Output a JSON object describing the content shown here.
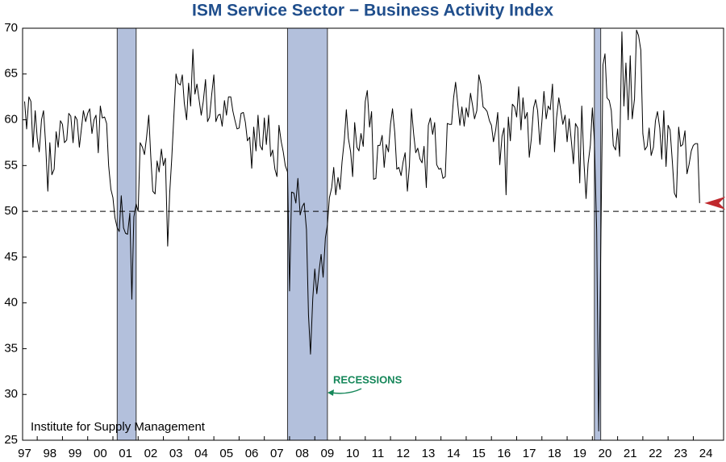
{
  "chart_data": {
    "type": "line",
    "title": "ISM Service Sector − Business Activity Index",
    "source": "Institute for Supply Management",
    "annotation": "RECESSIONS",
    "recessions": [
      [
        2001.17,
        2001.92
      ],
      [
        2007.92,
        2009.5
      ],
      [
        2020.08,
        2020.33
      ]
    ],
    "hline": 50,
    "color": "#000000",
    "recession_color": "#b3c0dc",
    "xlim": [
      1997.42,
      2025.2
    ],
    "ylim": [
      25,
      70
    ],
    "yticks": [
      25,
      30,
      35,
      40,
      45,
      50,
      55,
      60,
      65,
      70
    ],
    "xticks": [
      {
        "value": 1997,
        "label": "97"
      },
      {
        "value": 1998,
        "label": "98"
      },
      {
        "value": 1999,
        "label": "99"
      },
      {
        "value": 2000,
        "label": "00"
      },
      {
        "value": 2001,
        "label": "01"
      },
      {
        "value": 2002,
        "label": "02"
      },
      {
        "value": 2003,
        "label": "03"
      },
      {
        "value": 2004,
        "label": "04"
      },
      {
        "value": 2005,
        "label": "05"
      },
      {
        "value": 2006,
        "label": "06"
      },
      {
        "value": 2007,
        "label": "07"
      },
      {
        "value": 2008,
        "label": "08"
      },
      {
        "value": 2009,
        "label": "09"
      },
      {
        "value": 2010,
        "label": "10"
      },
      {
        "value": 2011,
        "label": "11"
      },
      {
        "value": 2012,
        "label": "12"
      },
      {
        "value": 2013,
        "label": "13"
      },
      {
        "value": 2014,
        "label": "14"
      },
      {
        "value": 2015,
        "label": "15"
      },
      {
        "value": 2016,
        "label": "16"
      },
      {
        "value": 2017,
        "label": "17"
      },
      {
        "value": 2018,
        "label": "18"
      },
      {
        "value": 2019,
        "label": "19"
      },
      {
        "value": 2020,
        "label": "20"
      },
      {
        "value": 2021,
        "label": "21"
      },
      {
        "value": 2022,
        "label": "22"
      },
      {
        "value": 2023,
        "label": "23"
      },
      {
        "value": 2024,
        "label": "24"
      }
    ],
    "x": [
      1997.5,
      1997.58,
      1997.67,
      1997.75,
      1997.83,
      1997.92,
      1998,
      1998.08,
      1998.17,
      1998.25,
      1998.33,
      1998.42,
      1998.5,
      1998.58,
      1998.67,
      1998.75,
      1998.83,
      1998.92,
      1999,
      1999.08,
      1999.17,
      1999.25,
      1999.33,
      1999.42,
      1999.5,
      1999.58,
      1999.67,
      1999.75,
      1999.83,
      1999.92,
      2000,
      2000.08,
      2000.17,
      2000.25,
      2000.33,
      2000.42,
      2000.5,
      2000.58,
      2000.67,
      2000.75,
      2000.83,
      2000.92,
      2001,
      2001.08,
      2001.17,
      2001.25,
      2001.33,
      2001.42,
      2001.5,
      2001.58,
      2001.67,
      2001.75,
      2001.83,
      2001.92,
      2002,
      2002.08,
      2002.17,
      2002.25,
      2002.33,
      2002.42,
      2002.5,
      2002.58,
      2002.67,
      2002.75,
      2002.83,
      2002.92,
      2003,
      2003.08,
      2003.17,
      2003.25,
      2003.33,
      2003.42,
      2003.5,
      2003.58,
      2003.67,
      2003.75,
      2003.83,
      2003.92,
      2004,
      2004.08,
      2004.17,
      2004.25,
      2004.33,
      2004.42,
      2004.5,
      2004.58,
      2004.67,
      2004.75,
      2004.83,
      2004.92,
      2005,
      2005.08,
      2005.17,
      2005.25,
      2005.33,
      2005.42,
      2005.5,
      2005.58,
      2005.67,
      2005.75,
      2005.83,
      2005.92,
      2006,
      2006.08,
      2006.17,
      2006.25,
      2006.33,
      2006.42,
      2006.5,
      2006.58,
      2006.67,
      2006.75,
      2006.83,
      2006.92,
      2007,
      2007.08,
      2007.17,
      2007.25,
      2007.33,
      2007.42,
      2007.5,
      2007.58,
      2007.67,
      2007.75,
      2007.83,
      2007.92,
      2008,
      2008.08,
      2008.17,
      2008.25,
      2008.33,
      2008.42,
      2008.5,
      2008.58,
      2008.67,
      2008.75,
      2008.83,
      2008.92,
      2009,
      2009.08,
      2009.17,
      2009.25,
      2009.33,
      2009.42,
      2009.5,
      2009.58,
      2009.67,
      2009.75,
      2009.83,
      2009.92,
      2010,
      2010.08,
      2010.17,
      2010.25,
      2010.33,
      2010.42,
      2010.5,
      2010.58,
      2010.67,
      2010.75,
      2010.83,
      2010.92,
      2011,
      2011.08,
      2011.17,
      2011.25,
      2011.33,
      2011.42,
      2011.5,
      2011.58,
      2011.67,
      2011.75,
      2011.83,
      2011.92,
      2012,
      2012.08,
      2012.17,
      2012.25,
      2012.33,
      2012.42,
      2012.5,
      2012.58,
      2012.67,
      2012.75,
      2012.83,
      2012.92,
      2013,
      2013.08,
      2013.17,
      2013.25,
      2013.33,
      2013.42,
      2013.5,
      2013.58,
      2013.67,
      2013.75,
      2013.83,
      2013.92,
      2014,
      2014.08,
      2014.17,
      2014.25,
      2014.33,
      2014.42,
      2014.5,
      2014.58,
      2014.67,
      2014.75,
      2014.83,
      2014.92,
      2015,
      2015.08,
      2015.17,
      2015.25,
      2015.33,
      2015.42,
      2015.5,
      2015.58,
      2015.67,
      2015.75,
      2015.83,
      2015.92,
      2016,
      2016.08,
      2016.17,
      2016.25,
      2016.33,
      2016.42,
      2016.5,
      2016.58,
      2016.67,
      2016.75,
      2016.83,
      2016.92,
      2017,
      2017.08,
      2017.17,
      2017.25,
      2017.33,
      2017.42,
      2017.5,
      2017.58,
      2017.67,
      2017.75,
      2017.83,
      2017.92,
      2018,
      2018.08,
      2018.17,
      2018.25,
      2018.33,
      2018.42,
      2018.5,
      2018.58,
      2018.67,
      2018.75,
      2018.83,
      2018.92,
      2019,
      2019.08,
      2019.17,
      2019.25,
      2019.33,
      2019.42,
      2019.5,
      2019.58,
      2019.67,
      2019.75,
      2019.83,
      2019.92,
      2020,
      2020.08,
      2020.17,
      2020.25,
      2020.33,
      2020.42,
      2020.5,
      2020.58,
      2020.67,
      2020.75,
      2020.83,
      2020.92,
      2021,
      2021.08,
      2021.17,
      2021.25,
      2021.33,
      2021.42,
      2021.5,
      2021.58,
      2021.67,
      2021.75,
      2021.83,
      2021.92,
      2022,
      2022.08,
      2022.17,
      2022.25,
      2022.33,
      2022.42,
      2022.5,
      2022.58,
      2022.67,
      2022.75,
      2022.83,
      2022.92,
      2023,
      2023.08,
      2023.17,
      2023.25,
      2023.33,
      2023.42,
      2023.5,
      2023.58,
      2023.67,
      2023.75,
      2023.83,
      2023.92,
      2024,
      2024.08,
      2024.17,
      2024.25
    ],
    "values": [
      62.0,
      59.0,
      62.5,
      62.0,
      57.0,
      61.0,
      58.0,
      56.5,
      60.0,
      61.0,
      57.5,
      52.2,
      57.5,
      54.0,
      54.6,
      58.7,
      57.0,
      59.9,
      59.5,
      57.5,
      57.8,
      60.7,
      60.4,
      57.5,
      60.4,
      60.0,
      57.0,
      59.0,
      61.0,
      59.8,
      60.7,
      61.2,
      58.5,
      60.0,
      60.5,
      56.4,
      61.5,
      60.2,
      60.3,
      59.6,
      55.0,
      52.4,
      51.5,
      49.3,
      48.2,
      47.8,
      51.7,
      48.2,
      47.6,
      47.5,
      49.8,
      40.4,
      49.4,
      50.8,
      50.0,
      57.5,
      57.0,
      56.2,
      58.0,
      60.5,
      56.0,
      52.2,
      51.9,
      55.5,
      54.3,
      56.8,
      55.0,
      55.8,
      46.2,
      52.0,
      55.7,
      60.7,
      65.0,
      64.0,
      63.8,
      64.9,
      61.8,
      60.0,
      64.0,
      61.5,
      67.7,
      62.8,
      63.9,
      62.1,
      60.5,
      62.0,
      64.4,
      59.8,
      60.3,
      62.9,
      64.9,
      59.8,
      60.5,
      60.6,
      59.3,
      62.1,
      60.5,
      62.5,
      62.5,
      61.0,
      60.0,
      59.0,
      59.1,
      60.7,
      60.8,
      59.7,
      57.7,
      58.1,
      54.7,
      59.2,
      56.6,
      60.5,
      57.2,
      56.7,
      60.2,
      57.3,
      60.5,
      56.0,
      56.7,
      54.6,
      53.8,
      59.4,
      57.6,
      56.5,
      55.0,
      54.3,
      41.3,
      52.1,
      52.0,
      50.9,
      53.6,
      49.6,
      50.5,
      50.9,
      48.0,
      38.7,
      34.4,
      40.5,
      43.7,
      41.0,
      43.5,
      45.3,
      42.8,
      47.1,
      48.5,
      51.5,
      52.6,
      54.8,
      51.8,
      53.7,
      52.4,
      55.4,
      57.8,
      61.1,
      58.0,
      56.5,
      53.8,
      59.7,
      57.0,
      56.6,
      58.5,
      57.1,
      62.0,
      63.2,
      59.2,
      60.9,
      53.5,
      53.6,
      57.2,
      57.2,
      58.3,
      54.8,
      57.3,
      56.5,
      59.5,
      61.2,
      58.6,
      54.6,
      54.8,
      53.9,
      55.4,
      56.4,
      52.2,
      55.0,
      61.2,
      58.4,
      56.4,
      56.9,
      55.7,
      55.3,
      57.1,
      52.6,
      59.4,
      60.2,
      58.4,
      59.7,
      55.1,
      54.6,
      54.7,
      53.6,
      53.8,
      59.6,
      59.5,
      59.5,
      62.4,
      64.1,
      61.6,
      59.4,
      61.4,
      59.3,
      61.3,
      60.3,
      62.9,
      61.6,
      60.1,
      61.0,
      64.9,
      63.9,
      61.4,
      61.2,
      60.9,
      59.9,
      59.4,
      57.6,
      58.9,
      60.8,
      55.1,
      58.2,
      59.1,
      51.8,
      60.3,
      57.7,
      61.7,
      61.4,
      60.3,
      63.6,
      58.9,
      62.4,
      60.1,
      60.8,
      55.9,
      57.9,
      61.3,
      62.2,
      61.0,
      57.3,
      59.8,
      63.1,
      60.1,
      61.5,
      61.1,
      63.9,
      56.5,
      60.2,
      62.4,
      61.0,
      59.5,
      60.5,
      57.6,
      60.1,
      57.6,
      55.2,
      59.6,
      59.1,
      53.1,
      61.5,
      55.2,
      51.4,
      55.2,
      57.2,
      61.3,
      57.7,
      48.0,
      26.0,
      45.4,
      66.0,
      67.2,
      62.4,
      62.1,
      61.0,
      57.2,
      56.7,
      59.0,
      56.0,
      69.6,
      61.5,
      66.2,
      60.0,
      67.0,
      60.1,
      62.3,
      69.8,
      69.2,
      67.6,
      58.5,
      56.7,
      57.1,
      59.1,
      56.1,
      57.0,
      59.9,
      60.9,
      59.1,
      55.7,
      61.0,
      54.9,
      59.4,
      58.9,
      55.4,
      52.0,
      51.5,
      59.2,
      57.1,
      57.3,
      58.8,
      54.1,
      55.1,
      56.6,
      57.2,
      57.4,
      57.4,
      50.9
    ]
  }
}
